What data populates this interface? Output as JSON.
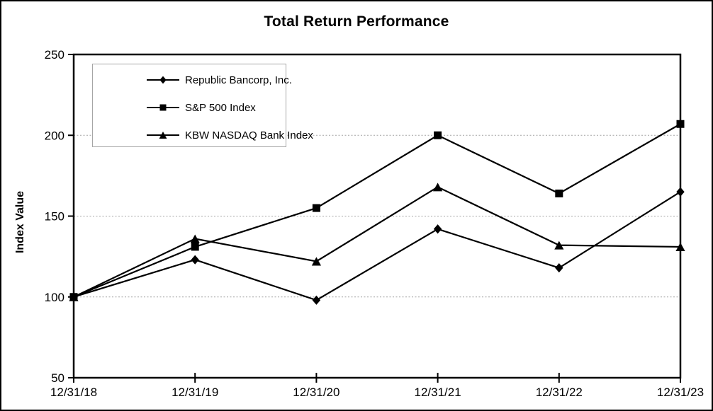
{
  "figure": {
    "background": "#ffffff",
    "border_color": "#000000"
  },
  "chart_data": {
    "type": "line",
    "title": "Total Return Performance",
    "xlabel": "",
    "ylabel": "Index Value",
    "categories": [
      "12/31/18",
      "12/31/19",
      "12/31/20",
      "12/31/21",
      "12/31/22",
      "12/31/23"
    ],
    "series": [
      {
        "name": "Republic Bancorp, Inc.",
        "marker": "diamond",
        "color": "#000000",
        "values": [
          100,
          123,
          98,
          142,
          118,
          165
        ]
      },
      {
        "name": "S&P 500 Index",
        "marker": "square",
        "color": "#000000",
        "values": [
          100,
          131,
          155,
          200,
          164,
          207
        ]
      },
      {
        "name": "KBW NASDAQ Bank Index",
        "marker": "triangle",
        "color": "#000000",
        "values": [
          100,
          136,
          122,
          168,
          132,
          131
        ]
      }
    ],
    "ylim": [
      50,
      250
    ],
    "y_ticks": [
      50,
      100,
      150,
      200,
      250
    ],
    "gridline_values": [
      100,
      150,
      200
    ],
    "grid": "horizontal-dotted",
    "legend_position": "top-left-inside",
    "axis_color": "#000000",
    "gridline_color": "#a3a3a3",
    "plot_frame": "full-box"
  }
}
